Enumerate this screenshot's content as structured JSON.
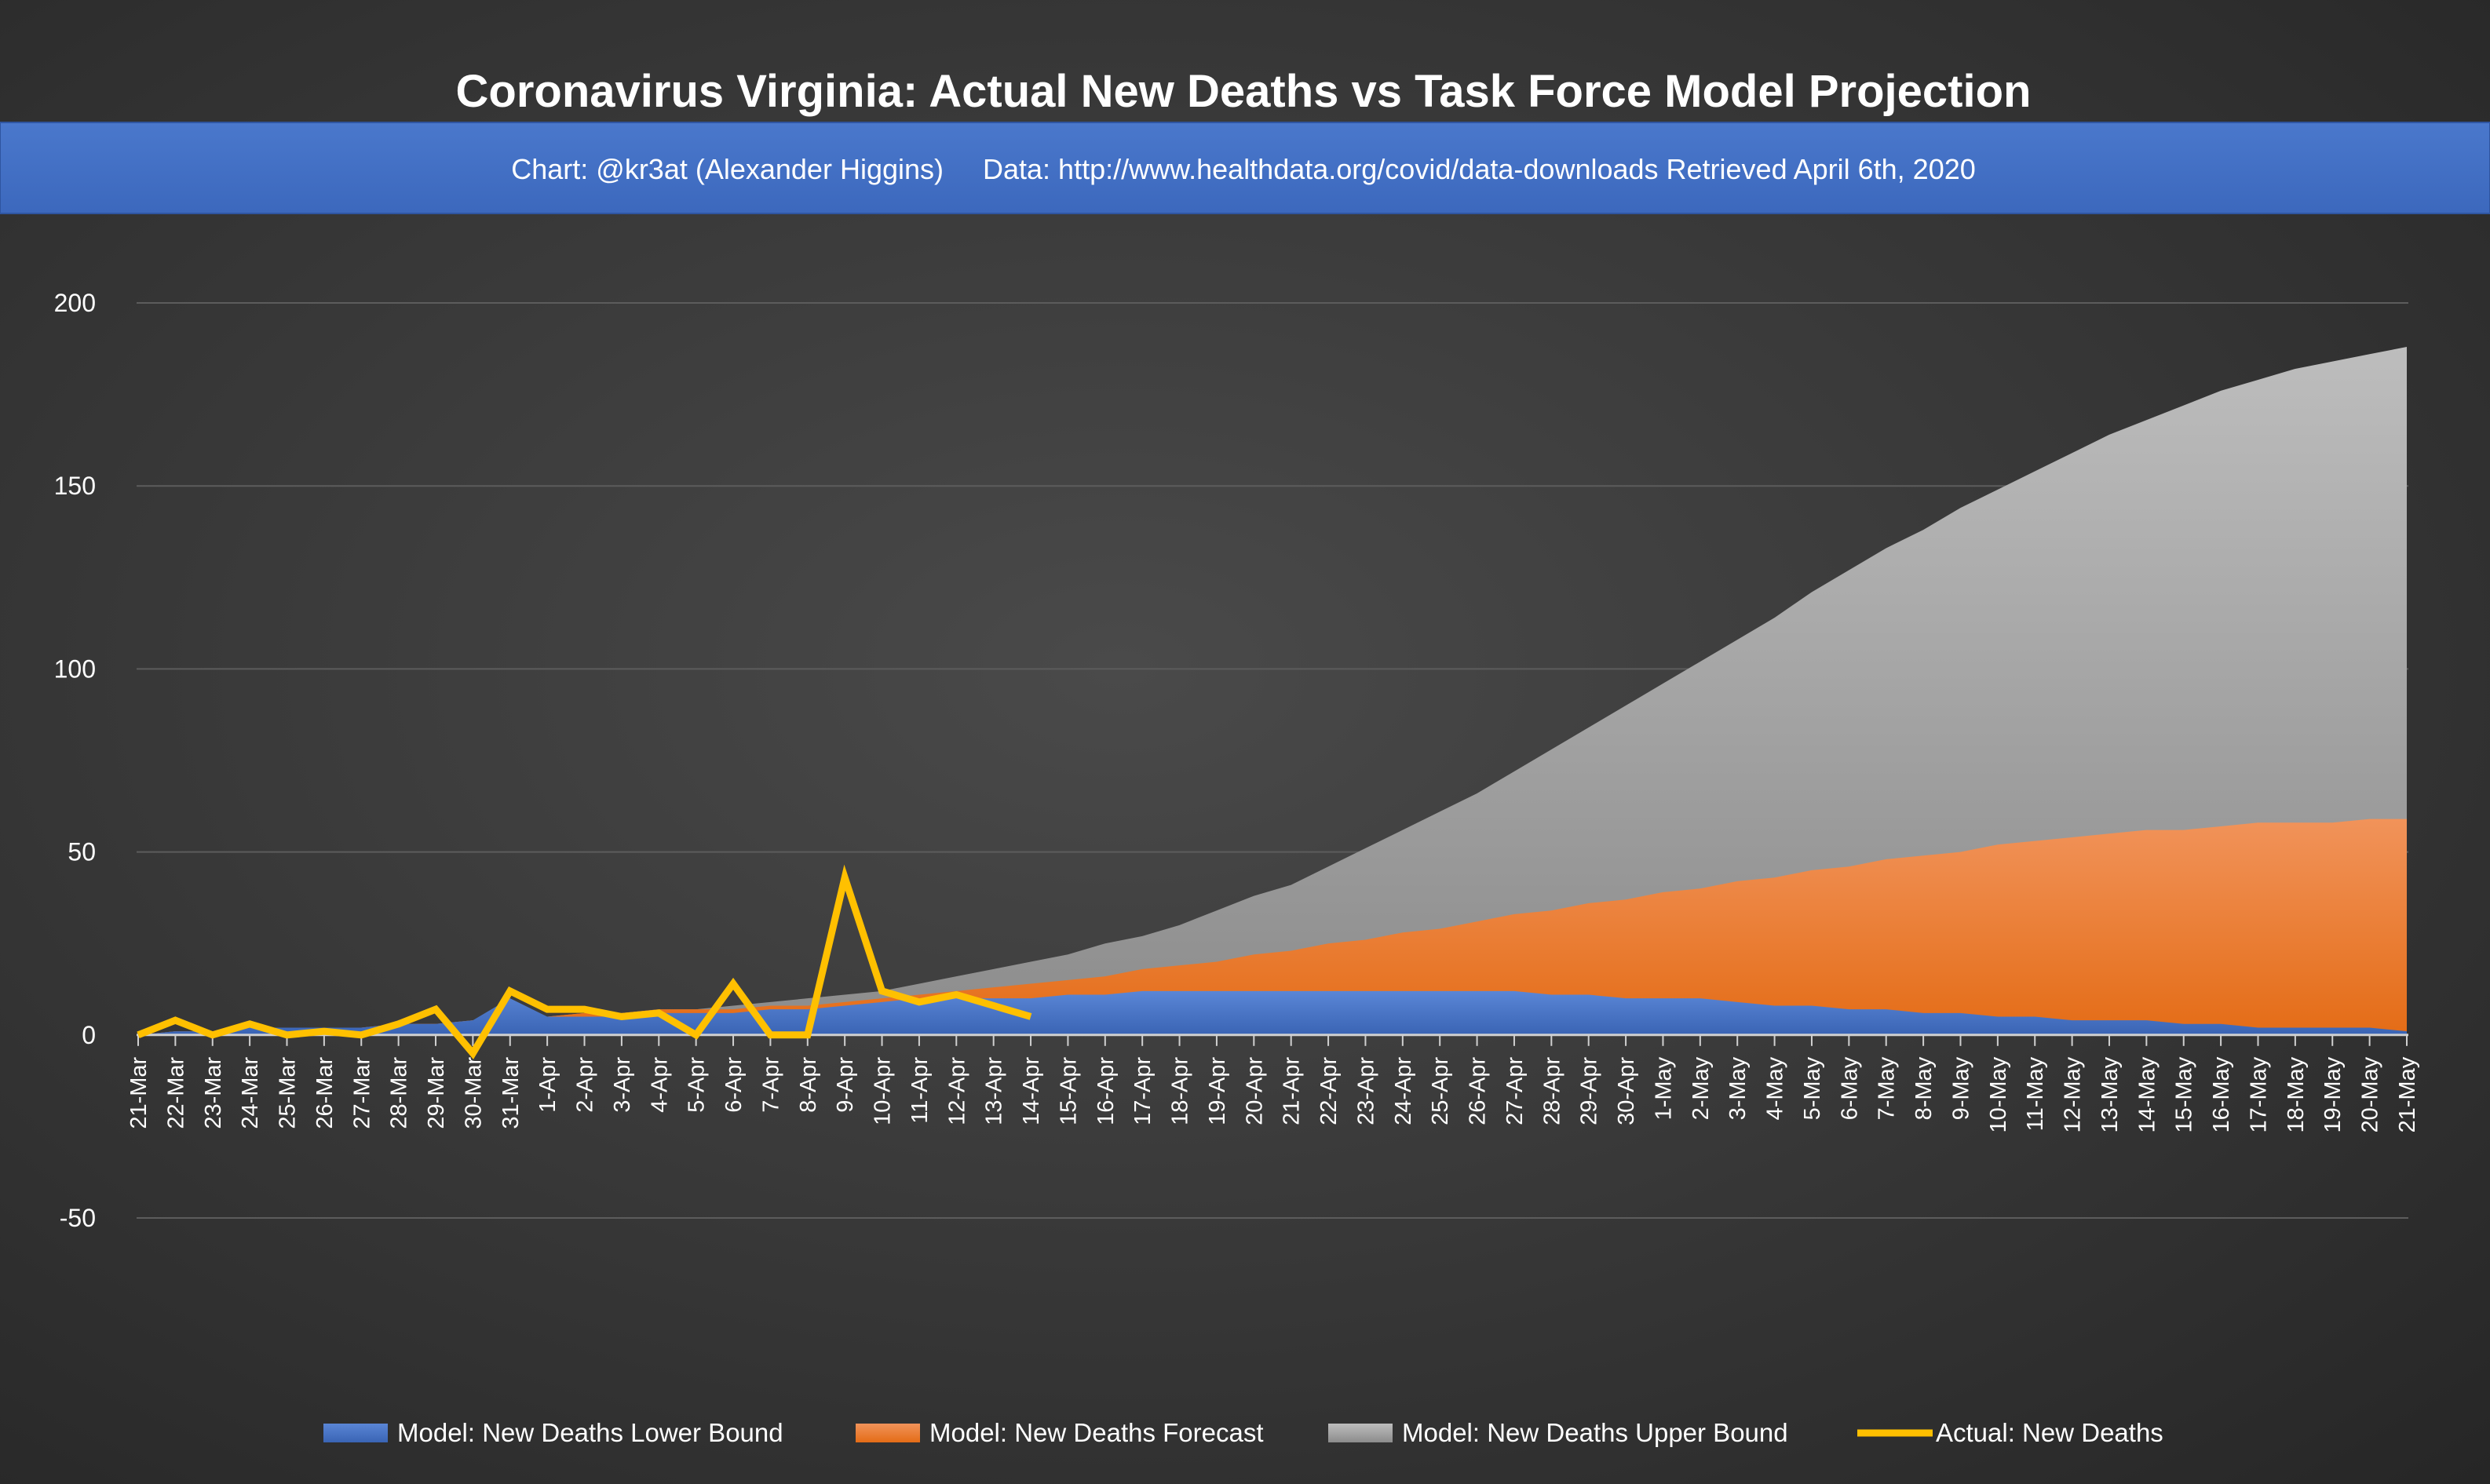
{
  "chart_data": {
    "type": "area",
    "title": "Coronavirus Virginia: Actual New Deaths vs Task Force Model Projection",
    "subtitle": "Chart: @kr3at (Alexander Higgins)     Data: http://www.healthdata.org/covid/data-downloads Retrieved April 6th, 2020",
    "xlabel": "",
    "ylabel": "",
    "ylim": [
      -50,
      200
    ],
    "yticks": [
      200,
      150,
      100,
      50,
      0,
      -50
    ],
    "grid": true,
    "legend_position": "bottom",
    "categories": [
      "21-Mar",
      "22-Mar",
      "23-Mar",
      "24-Mar",
      "25-Mar",
      "26-Mar",
      "27-Mar",
      "28-Mar",
      "29-Mar",
      "30-Mar",
      "31-Mar",
      "1-Apr",
      "2-Apr",
      "3-Apr",
      "4-Apr",
      "5-Apr",
      "6-Apr",
      "7-Apr",
      "8-Apr",
      "9-Apr",
      "10-Apr",
      "11-Apr",
      "12-Apr",
      "13-Apr",
      "14-Apr",
      "15-Apr",
      "16-Apr",
      "17-Apr",
      "18-Apr",
      "19-Apr",
      "20-Apr",
      "21-Apr",
      "22-Apr",
      "23-Apr",
      "24-Apr",
      "25-Apr",
      "26-Apr",
      "27-Apr",
      "28-Apr",
      "29-Apr",
      "30-Apr",
      "1-May",
      "2-May",
      "3-May",
      "4-May",
      "5-May",
      "6-May",
      "7-May",
      "8-May",
      "9-May",
      "10-May",
      "11-May",
      "12-May",
      "13-May",
      "14-May",
      "15-May",
      "16-May",
      "17-May",
      "18-May",
      "19-May",
      "20-May",
      "21-May"
    ],
    "series": [
      {
        "name": "Model: New Deaths Lower Bound",
        "kind": "area",
        "color": "#4472C4",
        "values": [
          0,
          1,
          1,
          2,
          2,
          2,
          2,
          3,
          3,
          4,
          10,
          5,
          5,
          5,
          6,
          6,
          6,
          7,
          7,
          8,
          9,
          10,
          10,
          10,
          10,
          11,
          11,
          12,
          12,
          12,
          12,
          12,
          12,
          12,
          12,
          12,
          12,
          12,
          11,
          11,
          10,
          10,
          10,
          9,
          8,
          8,
          7,
          7,
          6,
          6,
          5,
          5,
          4,
          4,
          4,
          3,
          3,
          2,
          2,
          2,
          2,
          1
        ]
      },
      {
        "name": "Model: New Deaths Forecast",
        "kind": "area",
        "color": "#ED7D31",
        "values": [
          0,
          1,
          1,
          2,
          2,
          2,
          2,
          3,
          3,
          4,
          5,
          5,
          6,
          6,
          7,
          7,
          7,
          8,
          8,
          9,
          10,
          11,
          12,
          13,
          14,
          15,
          16,
          18,
          19,
          20,
          22,
          23,
          25,
          26,
          28,
          29,
          31,
          33,
          34,
          36,
          37,
          39,
          40,
          42,
          43,
          45,
          46,
          48,
          49,
          50,
          52,
          53,
          54,
          55,
          56,
          56,
          57,
          58,
          58,
          58,
          59,
          59
        ]
      },
      {
        "name": "Model: New Deaths Upper Bound",
        "kind": "area",
        "color": "#A5A5A5",
        "values": [
          0,
          1,
          1,
          2,
          2,
          2,
          2,
          3,
          3,
          4,
          5,
          5,
          6,
          6,
          7,
          7,
          8,
          9,
          10,
          11,
          12,
          14,
          16,
          18,
          20,
          22,
          25,
          27,
          30,
          34,
          38,
          41,
          46,
          51,
          56,
          61,
          66,
          72,
          78,
          84,
          90,
          96,
          102,
          108,
          114,
          121,
          127,
          133,
          138,
          144,
          149,
          154,
          159,
          164,
          168,
          172,
          176,
          179,
          182,
          184,
          186,
          188
        ]
      },
      {
        "name": "Actual: New Deaths",
        "kind": "line",
        "color": "#FFC000",
        "values": [
          0,
          4,
          0,
          3,
          0,
          1,
          0,
          3,
          7,
          -5,
          12,
          7,
          7,
          5,
          6,
          0,
          14,
          0,
          0,
          43,
          12,
          9,
          11,
          8,
          5,
          null,
          null,
          null,
          null,
          null,
          null,
          null,
          null,
          null,
          null,
          null,
          null,
          null,
          null,
          null,
          null,
          null,
          null,
          null,
          null,
          null,
          null,
          null,
          null,
          null,
          null,
          null,
          null,
          null,
          null,
          null,
          null,
          null,
          null,
          null,
          null,
          null
        ]
      }
    ]
  }
}
